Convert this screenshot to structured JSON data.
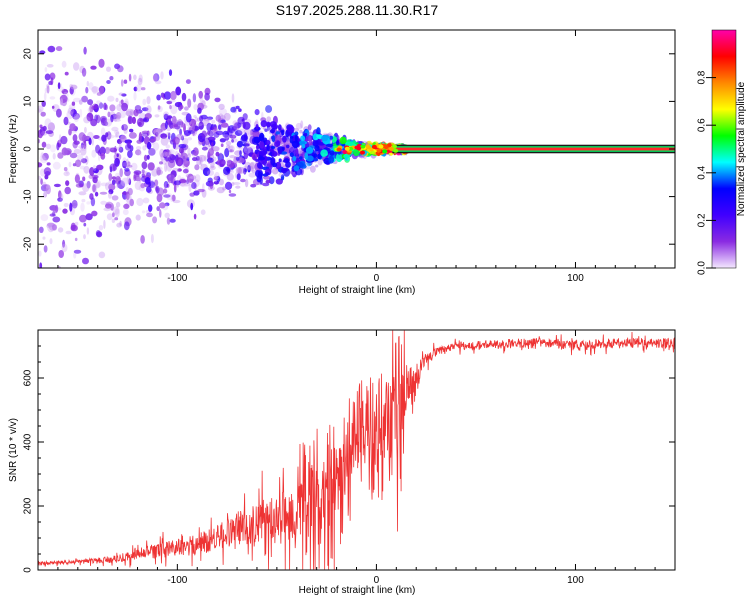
{
  "title": "S197.2025.288.11.30.R17",
  "chart_data": [
    {
      "type": "heatmap",
      "name": "spectrogram",
      "xlabel": "Height of straight line (km)",
      "ylabel": "Frequency (Hz)",
      "xlim": [
        -170,
        150
      ],
      "ylim": [
        -25,
        25
      ],
      "xticks": [
        -100,
        0,
        100
      ],
      "xtick_labels": [
        "-100",
        "0",
        "100"
      ],
      "yticks": [
        -20,
        -10,
        0,
        10,
        20
      ],
      "ytick_labels": [
        "-20",
        "-10",
        "0",
        "10",
        "20"
      ],
      "colorbar": {
        "label": "Normalized spectral amplitude",
        "range": [
          0,
          1
        ],
        "ticks": [
          0.0,
          0.2,
          0.4,
          0.6,
          0.8
        ],
        "tick_labels": [
          "0.0",
          "0.2",
          "0.4",
          "0.6",
          "0.8"
        ],
        "stops": [
          "#f4e8ff",
          "#8a2be2",
          "#4000ff",
          "#0000ff",
          "#00ffff",
          "#00ff00",
          "#ffff00",
          "#ff8800",
          "#ff0000",
          "#ff00aa"
        ]
      },
      "description_points": [
        {
          "x": -160,
          "spread": 24,
          "amplitude": 0.15
        },
        {
          "x": -100,
          "spread": 14,
          "amplitude": 0.2
        },
        {
          "x": -60,
          "spread": 8,
          "amplitude": 0.25
        },
        {
          "x": -30,
          "spread": 4,
          "amplitude": 0.35
        },
        {
          "x": -10,
          "spread": 1.5,
          "amplitude": 0.5
        },
        {
          "x": 10,
          "spread": 0.8,
          "amplitude": 0.85
        },
        {
          "x": 150,
          "spread": 0.8,
          "amplitude": 0.9
        }
      ]
    },
    {
      "type": "line",
      "name": "snr",
      "xlabel": "Height of straight line (km)",
      "ylabel": "SNR (10 * v/v)",
      "xlim": [
        -170,
        150
      ],
      "ylim": [
        0,
        750
      ],
      "xticks": [
        -100,
        0,
        100
      ],
      "xtick_labels": [
        "-100",
        "0",
        "100"
      ],
      "yticks": [
        0,
        200,
        400,
        600
      ],
      "ytick_labels": [
        "0",
        "200",
        "400",
        "600"
      ],
      "color": "#ee3333",
      "series": [
        {
          "name": "SNR",
          "x": [
            -170,
            -150,
            -130,
            -120,
            -110,
            -100,
            -90,
            -80,
            -70,
            -60,
            -50,
            -40,
            -30,
            -25,
            -20,
            -15,
            -10,
            -5,
            0,
            5,
            10,
            15,
            20,
            25,
            30,
            40,
            60,
            80,
            100,
            120,
            150
          ],
          "y": [
            20,
            25,
            35,
            50,
            60,
            70,
            80,
            100,
            130,
            150,
            160,
            180,
            210,
            250,
            280,
            330,
            400,
            420,
            430,
            460,
            480,
            560,
            620,
            660,
            680,
            700,
            705,
            710,
            700,
            710,
            710
          ],
          "noise": [
            10,
            10,
            20,
            30,
            40,
            45,
            55,
            70,
            90,
            110,
            130,
            160,
            180,
            180,
            170,
            160,
            150,
            130,
            120,
            200,
            250,
            120,
            40,
            30,
            25,
            20,
            25,
            25,
            25,
            25,
            25
          ]
        }
      ]
    }
  ]
}
